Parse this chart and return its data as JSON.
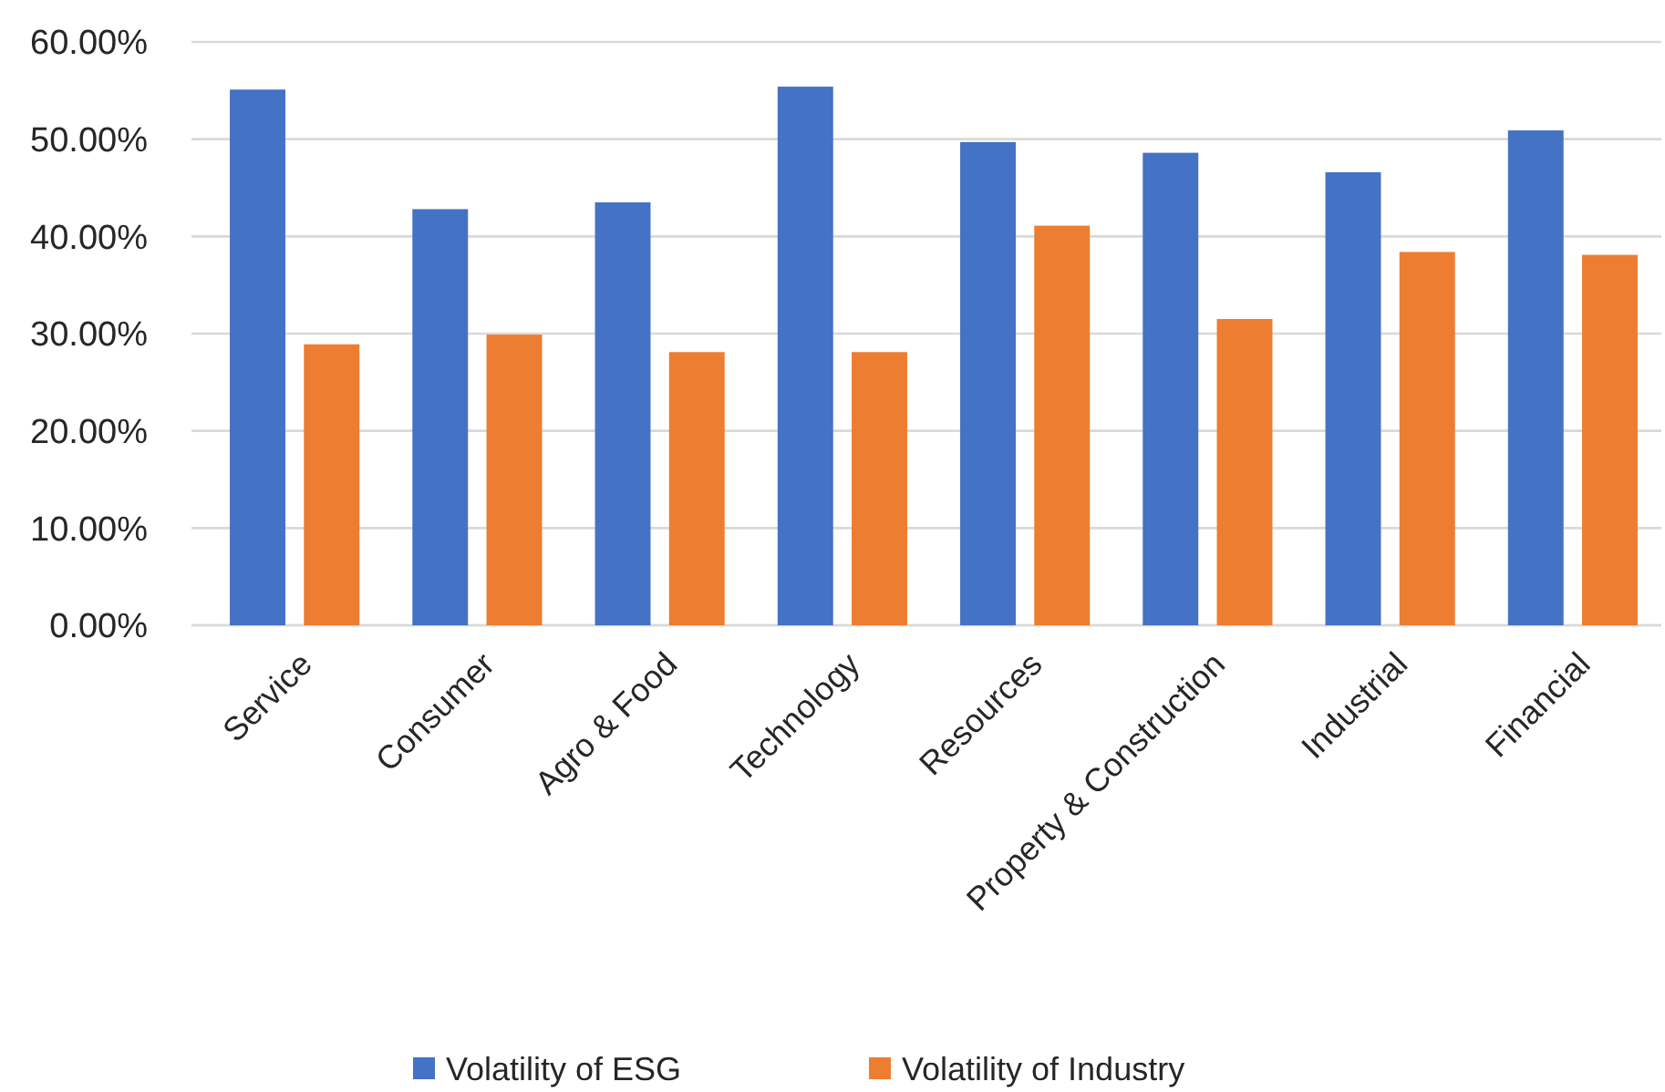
{
  "chart_data": {
    "type": "bar",
    "categories": [
      "Service",
      "Consumer",
      "Agro & Food",
      "Technology",
      "Resources",
      "Property & Construction",
      "Industrial",
      "Financial"
    ],
    "series": [
      {
        "name": "Volatility of  ESG",
        "color": "#4472c4",
        "values": [
          55.1,
          42.8,
          43.5,
          55.4,
          49.7,
          48.6,
          46.6,
          50.9
        ]
      },
      {
        "name": "Volatility of  Industry",
        "color": "#ed7d31",
        "values": [
          28.9,
          29.9,
          28.1,
          28.1,
          41.1,
          31.5,
          38.4,
          38.1
        ]
      }
    ],
    "ylim": [
      0,
      60
    ],
    "yticks": [
      {
        "value": 0,
        "label": "0.00%"
      },
      {
        "value": 10,
        "label": "10.00%"
      },
      {
        "value": 20,
        "label": "20.00%"
      },
      {
        "value": 30,
        "label": "30.00%"
      },
      {
        "value": 40,
        "label": "40.00%"
      },
      {
        "value": 50,
        "label": "50.00%"
      },
      {
        "value": 60,
        "label": "60.00%"
      }
    ],
    "grid": "y",
    "legend": "bottom"
  }
}
